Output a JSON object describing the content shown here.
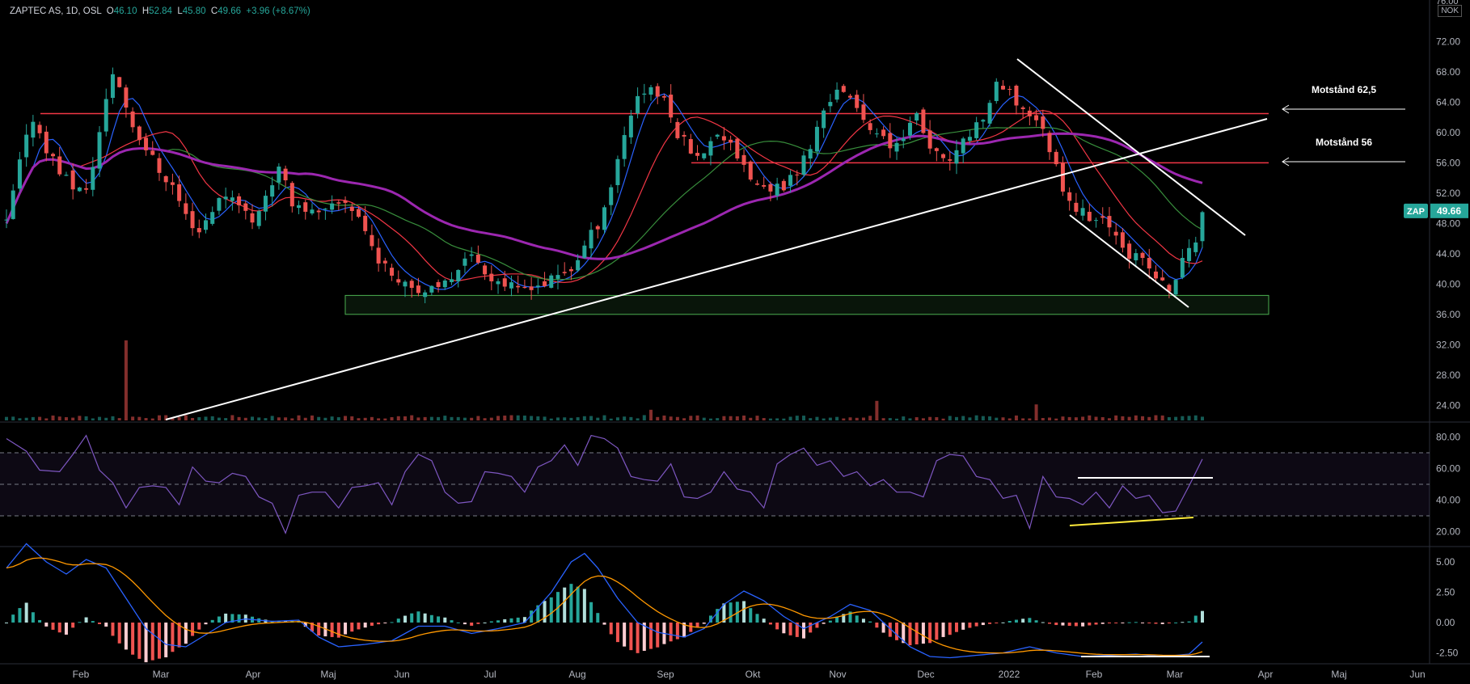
{
  "header": {
    "symbol": "ZAPTEC AS, 1D, OSL",
    "o_label": "O",
    "o_value": "46.10",
    "h_label": "H",
    "h_value": "52.84",
    "l_label": "L",
    "l_value": "45.80",
    "c_label": "C",
    "c_value": "49.66",
    "change": "+3.96 (+8.67%)"
  },
  "currency": "NOK",
  "colors": {
    "up": "#26a69a",
    "down": "#ef5350",
    "ma_blue": "#2962ff",
    "ma_red": "#f23645",
    "ma_green": "#388e3c",
    "ma_purple": "#9c27b0",
    "support_zone": "#4caf50",
    "resistance": "#f23645",
    "trendline": "#ffffff",
    "rsi": "#7e57c2",
    "divergence": "#ffeb3b"
  },
  "chart_data": [
    {
      "type": "candlestick",
      "title": "ZAPTEC AS, 1D, OSL",
      "ylim": [
        22,
        76
      ],
      "yticks": [
        "72.00",
        "68.00",
        "64.00",
        "60.00",
        "56.00",
        "52.00",
        "48.00",
        "44.00",
        "40.00",
        "36.00",
        "32.00",
        "28.00",
        "24.00"
      ],
      "last_price_label": "ZAP",
      "last_price": "49.66",
      "x_axis_labels": [
        "Feb",
        "Mar",
        "Apr",
        "Maj",
        "Jun",
        "Jul",
        "Aug",
        "Sep",
        "Okt",
        "Nov",
        "Dec",
        "2022",
        "Feb",
        "Mar",
        "Apr",
        "Maj",
        "Jun"
      ],
      "price_path": [
        [
          0,
          48
        ],
        [
          2,
          56
        ],
        [
          4,
          62
        ],
        [
          6,
          58
        ],
        [
          8,
          55
        ],
        [
          10,
          53
        ],
        [
          12,
          52
        ],
        [
          14,
          60
        ],
        [
          16,
          68
        ],
        [
          17,
          66
        ],
        [
          19,
          61
        ],
        [
          21,
          58
        ],
        [
          23,
          55
        ],
        [
          25,
          53
        ],
        [
          27,
          49
        ],
        [
          29,
          47
        ],
        [
          31,
          50
        ],
        [
          33,
          52
        ],
        [
          35,
          51
        ],
        [
          37,
          48
        ],
        [
          39,
          52
        ],
        [
          41,
          55
        ],
        [
          43,
          51
        ],
        [
          45,
          50
        ],
        [
          47,
          49
        ],
        [
          49,
          50
        ],
        [
          51,
          51
        ],
        [
          53,
          49
        ],
        [
          55,
          45
        ],
        [
          57,
          42
        ],
        [
          59,
          41
        ],
        [
          61,
          40
        ],
        [
          63,
          39
        ],
        [
          65,
          39
        ],
        [
          67,
          41
        ],
        [
          69,
          44
        ],
        [
          71,
          43
        ],
        [
          73,
          41
        ],
        [
          75,
          40
        ],
        [
          77,
          39
        ],
        [
          79,
          40
        ],
        [
          81,
          40
        ],
        [
          83,
          41
        ],
        [
          85,
          42
        ],
        [
          87,
          45
        ],
        [
          89,
          48
        ],
        [
          91,
          53
        ],
        [
          93,
          60
        ],
        [
          95,
          65
        ],
        [
          97,
          66
        ],
        [
          99,
          64
        ],
        [
          101,
          60
        ],
        [
          103,
          58
        ],
        [
          105,
          57
        ],
        [
          107,
          60
        ],
        [
          109,
          59
        ],
        [
          111,
          55
        ],
        [
          113,
          53
        ],
        [
          115,
          52
        ],
        [
          117,
          53
        ],
        [
          119,
          55
        ],
        [
          121,
          58
        ],
        [
          123,
          63
        ],
        [
          125,
          66
        ],
        [
          127,
          64
        ],
        [
          129,
          62
        ],
        [
          131,
          60
        ],
        [
          133,
          58
        ],
        [
          135,
          60
        ],
        [
          137,
          62
        ],
        [
          139,
          58
        ],
        [
          141,
          56
        ],
        [
          143,
          57
        ],
        [
          145,
          60
        ],
        [
          147,
          62
        ],
        [
          149,
          66
        ],
        [
          151,
          65
        ],
        [
          153,
          63
        ],
        [
          155,
          62
        ],
        [
          157,
          58
        ],
        [
          159,
          53
        ],
        [
          161,
          50
        ],
        [
          163,
          49
        ],
        [
          165,
          48
        ],
        [
          167,
          47
        ],
        [
          169,
          44
        ],
        [
          171,
          43
        ],
        [
          173,
          41
        ],
        [
          175,
          39
        ],
        [
          177,
          43
        ],
        [
          179,
          46
        ],
        [
          180,
          49.66
        ]
      ],
      "volume_spikes": [
        [
          18,
          0.9
        ],
        [
          131,
          0.22
        ],
        [
          97,
          0.12
        ],
        [
          155,
          0.18
        ]
      ]
    },
    {
      "type": "line",
      "title": "RSI",
      "ylim": [
        12,
        88
      ],
      "yticks": [
        "80.00",
        "60.00",
        "40.00",
        "20.00"
      ],
      "bands": [
        70,
        50,
        30
      ],
      "rsi_path": [
        [
          0,
          82
        ],
        [
          3,
          68
        ],
        [
          5,
          62
        ],
        [
          8,
          55
        ],
        [
          10,
          72
        ],
        [
          12,
          78
        ],
        [
          14,
          62
        ],
        [
          16,
          48
        ],
        [
          18,
          38
        ],
        [
          20,
          45
        ],
        [
          22,
          52
        ],
        [
          24,
          45
        ],
        [
          26,
          40
        ],
        [
          28,
          58
        ],
        [
          30,
          55
        ],
        [
          32,
          48
        ],
        [
          34,
          60
        ],
        [
          36,
          52
        ],
        [
          38,
          45
        ],
        [
          40,
          35
        ],
        [
          42,
          22
        ],
        [
          44,
          40
        ],
        [
          46,
          48
        ],
        [
          48,
          42
        ],
        [
          50,
          38
        ],
        [
          52,
          45
        ],
        [
          54,
          52
        ],
        [
          56,
          48
        ],
        [
          58,
          40
        ],
        [
          60,
          55
        ],
        [
          62,
          72
        ],
        [
          64,
          62
        ],
        [
          66,
          48
        ],
        [
          68,
          35
        ],
        [
          70,
          42
        ],
        [
          72,
          55
        ],
        [
          74,
          60
        ],
        [
          76,
          52
        ],
        [
          78,
          48
        ],
        [
          80,
          58
        ],
        [
          82,
          68
        ],
        [
          84,
          72
        ],
        [
          86,
          65
        ],
        [
          88,
          78
        ],
        [
          90,
          82
        ],
        [
          92,
          70
        ],
        [
          94,
          58
        ],
        [
          96,
          50
        ],
        [
          98,
          55
        ],
        [
          100,
          60
        ],
        [
          102,
          45
        ],
        [
          104,
          38
        ],
        [
          106,
          48
        ],
        [
          108,
          55
        ],
        [
          110,
          50
        ],
        [
          112,
          42
        ],
        [
          114,
          38
        ],
        [
          116,
          60
        ],
        [
          118,
          72
        ],
        [
          120,
          70
        ],
        [
          122,
          65
        ],
        [
          124,
          62
        ],
        [
          126,
          58
        ],
        [
          128,
          55
        ],
        [
          130,
          52
        ],
        [
          132,
          50
        ],
        [
          134,
          48
        ],
        [
          136,
          42
        ],
        [
          138,
          45
        ],
        [
          140,
          62
        ],
        [
          142,
          72
        ],
        [
          144,
          65
        ],
        [
          146,
          58
        ],
        [
          148,
          50
        ],
        [
          150,
          44
        ],
        [
          152,
          40
        ],
        [
          154,
          25
        ],
        [
          156,
          52
        ],
        [
          158,
          45
        ],
        [
          160,
          38
        ],
        [
          162,
          40
        ],
        [
          164,
          42
        ],
        [
          166,
          38
        ],
        [
          168,
          46
        ],
        [
          170,
          44
        ],
        [
          172,
          40
        ],
        [
          174,
          35
        ],
        [
          176,
          30
        ],
        [
          178,
          52
        ],
        [
          180,
          63
        ]
      ]
    },
    {
      "type": "macd",
      "title": "MACD",
      "ylim": [
        -3.2,
        6.0
      ],
      "yticks": [
        "5.00",
        "2.50",
        "0.00",
        "-2.50"
      ],
      "macd_path": [
        [
          0,
          4.5
        ],
        [
          3,
          6.5
        ],
        [
          6,
          5
        ],
        [
          9,
          4.0
        ],
        [
          12,
          5.2
        ],
        [
          15,
          4.5
        ],
        [
          18,
          2.0
        ],
        [
          21,
          -0.5
        ],
        [
          24,
          -1.8
        ],
        [
          27,
          -2.0
        ],
        [
          30,
          -1.0
        ],
        [
          33,
          0.0
        ],
        [
          36,
          0.3
        ],
        [
          40,
          0.1
        ],
        [
          44,
          0.2
        ],
        [
          47,
          -1.2
        ],
        [
          50,
          -2.0
        ],
        [
          54,
          -1.8
        ],
        [
          58,
          -1.5
        ],
        [
          62,
          -0.3
        ],
        [
          66,
          -0.3
        ],
        [
          70,
          -0.9
        ],
        [
          74,
          -0.5
        ],
        [
          78,
          0.0
        ],
        [
          82,
          2.5
        ],
        [
          85,
          5.0
        ],
        [
          87,
          5.7
        ],
        [
          89,
          4.5
        ],
        [
          92,
          2.0
        ],
        [
          95,
          0.0
        ],
        [
          98,
          -0.8
        ],
        [
          102,
          -1.2
        ],
        [
          105,
          -0.5
        ],
        [
          108,
          1.5
        ],
        [
          111,
          2.6
        ],
        [
          114,
          1.8
        ],
        [
          117,
          0.5
        ],
        [
          120,
          -0.5
        ],
        [
          124,
          0.5
        ],
        [
          127,
          1.5
        ],
        [
          130,
          1.0
        ],
        [
          133,
          -0.5
        ],
        [
          136,
          -2.0
        ],
        [
          139,
          -2.8
        ],
        [
          142,
          -2.9
        ],
        [
          146,
          -2.7
        ],
        [
          150,
          -2.5
        ],
        [
          154,
          -2.0
        ],
        [
          158,
          -2.5
        ],
        [
          162,
          -2.8
        ],
        [
          166,
          -2.7
        ],
        [
          170,
          -2.6
        ],
        [
          174,
          -2.8
        ],
        [
          178,
          -2.6
        ],
        [
          180,
          -1.6
        ]
      ]
    }
  ],
  "annotations": {
    "resistance_1_label": "Motstånd 62,5",
    "resistance_1_value": 62.5,
    "resistance_2_label": "Motstånd 56",
    "resistance_2_value": 56,
    "support_zone_top": 38.5,
    "support_zone_bottom": 36.0
  }
}
